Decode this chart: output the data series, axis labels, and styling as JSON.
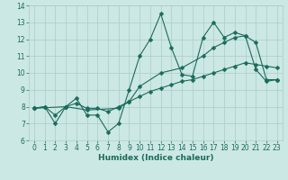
{
  "title": "",
  "xlabel": "Humidex (Indice chaleur)",
  "ylabel": "",
  "xlim": [
    -0.5,
    23.5
  ],
  "ylim": [
    6,
    14
  ],
  "xticks": [
    0,
    1,
    2,
    3,
    4,
    5,
    6,
    7,
    8,
    9,
    10,
    11,
    12,
    13,
    14,
    15,
    16,
    17,
    18,
    19,
    20,
    21,
    22,
    23
  ],
  "yticks": [
    6,
    7,
    8,
    9,
    10,
    11,
    12,
    13,
    14
  ],
  "bg_color": "#cce8e4",
  "grid_color": "#aaccca",
  "line_color": "#1a6b5a",
  "line1_x": [
    0,
    1,
    2,
    3,
    4,
    5,
    6,
    7,
    8,
    9,
    10,
    11,
    12,
    13,
    14,
    15,
    16,
    17,
    18,
    19,
    20,
    21,
    22,
    23
  ],
  "line1_y": [
    7.9,
    8.0,
    7.0,
    8.0,
    8.5,
    7.5,
    7.5,
    6.5,
    7.0,
    9.0,
    11.0,
    12.0,
    13.5,
    11.5,
    9.9,
    9.8,
    12.1,
    13.0,
    12.1,
    12.4,
    12.2,
    10.2,
    9.5,
    9.6
  ],
  "line2_x": [
    0,
    3,
    5,
    8,
    9,
    10,
    12,
    14,
    16,
    17,
    18,
    19,
    20,
    21,
    22,
    23
  ],
  "line2_y": [
    7.9,
    8.0,
    7.8,
    7.9,
    8.3,
    9.2,
    10.0,
    10.3,
    11.0,
    11.5,
    11.8,
    12.1,
    12.2,
    11.8,
    9.6,
    9.6
  ],
  "line3_x": [
    0,
    1,
    2,
    3,
    4,
    5,
    6,
    7,
    8,
    9,
    10,
    11,
    12,
    13,
    14,
    15,
    16,
    17,
    18,
    19,
    20,
    21,
    22,
    23
  ],
  "line3_y": [
    7.9,
    8.0,
    7.5,
    8.0,
    8.2,
    7.9,
    7.9,
    7.7,
    8.0,
    8.3,
    8.6,
    8.9,
    9.1,
    9.3,
    9.5,
    9.6,
    9.8,
    10.0,
    10.2,
    10.4,
    10.6,
    10.5,
    10.4,
    10.3
  ],
  "marker": "D",
  "markersize": 2.5,
  "tick_fontsize": 5.5,
  "xlabel_fontsize": 6.5
}
